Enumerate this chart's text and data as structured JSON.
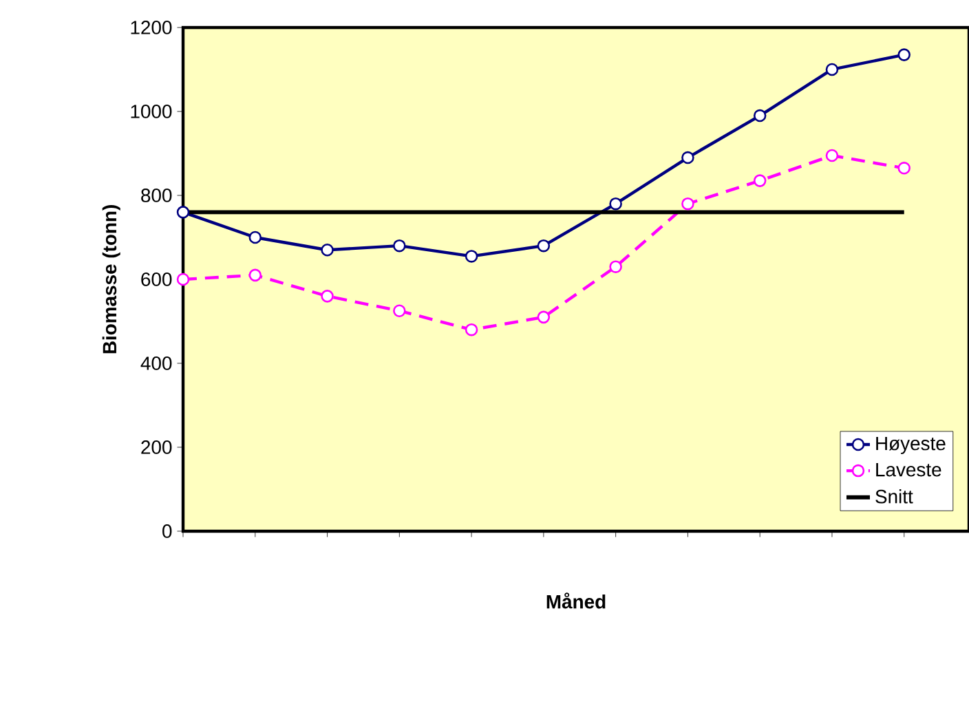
{
  "chart_data": {
    "type": "line",
    "xlabel": "Måned",
    "ylabel": "Biomasse (tonn)",
    "categories": [
      null,
      null,
      null,
      null,
      null,
      null,
      null,
      null,
      null,
      null,
      null
    ],
    "series": [
      {
        "name": "Høyeste",
        "color": "#000080",
        "marker": "circle",
        "line_style": "solid",
        "values": [
          760,
          700,
          670,
          680,
          655,
          680,
          780,
          890,
          990,
          1100,
          1135
        ]
      },
      {
        "name": "Laveste",
        "color": "#ff00ff",
        "marker": "circle",
        "line_style": "dashed",
        "values": [
          600,
          610,
          560,
          525,
          480,
          510,
          630,
          780,
          835,
          895,
          865
        ]
      },
      {
        "name": "Snitt",
        "color": "#000000",
        "marker": "none",
        "line_style": "solid",
        "values": [
          760,
          760,
          760,
          760,
          760,
          760,
          760,
          760,
          760,
          760,
          760
        ]
      }
    ],
    "ylim": [
      0,
      1200
    ],
    "yticks": [
      0,
      200,
      400,
      600,
      800,
      1000,
      1200
    ],
    "grid": false,
    "legend": "bottom right"
  }
}
